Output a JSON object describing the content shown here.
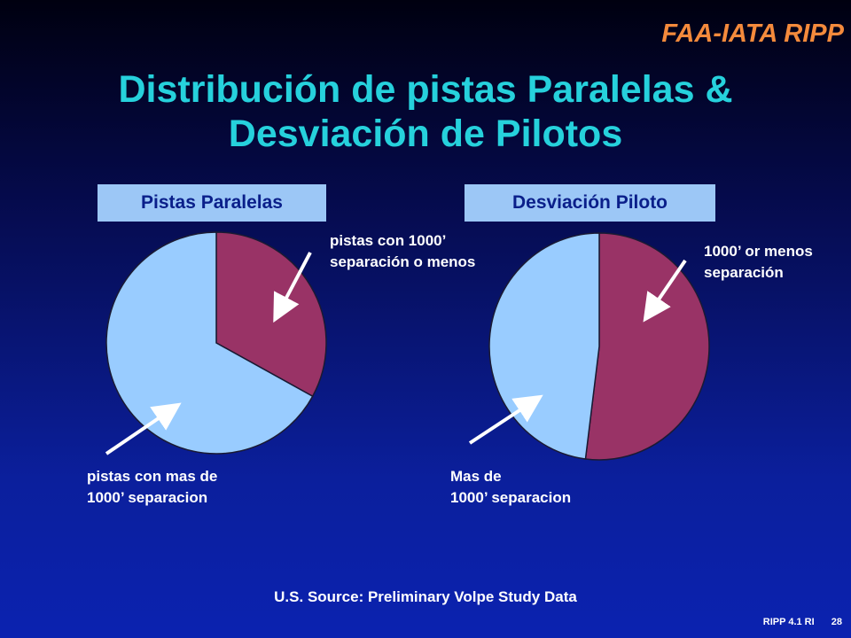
{
  "brand": "FAA-IATA RIPP",
  "title": [
    "Distribución de pistas Paralelas &",
    "Desviación de Pilotos"
  ],
  "colors": {
    "title": "#26d1dc",
    "brand": "#f48a3c",
    "slice_maroon": "#993366",
    "slice_lightblue": "#99ccff",
    "header_box": "#9cc7f6",
    "header_text": "#0a1f8a"
  },
  "chart_data": [
    {
      "type": "pie",
      "title": "Pistas Paralelas",
      "slices": [
        {
          "label": "pistas con 1000’ separación o menos",
          "value": 33,
          "color": "#993366"
        },
        {
          "label": "pistas con mas de 1000’ separacion",
          "value": 67,
          "color": "#99ccff"
        }
      ],
      "annotations": [
        [
          "pistas con 1000’",
          "separación o menos"
        ],
        [
          "pistas con mas de",
          "1000’ separacion"
        ]
      ]
    },
    {
      "type": "pie",
      "title": "Desviación Piloto",
      "slices": [
        {
          "label": "1000’ or menos separación",
          "value": 52,
          "color": "#993366"
        },
        {
          "label": "Mas de 1000’ separacion",
          "value": 48,
          "color": "#99ccff"
        }
      ],
      "annotations": [
        [
          "1000’ or menos",
          "separación"
        ],
        [
          "Mas de",
          "1000’ separacion"
        ]
      ]
    }
  ],
  "source": "U.S. Source: Preliminary Volpe Study Data",
  "footer": {
    "code": "RIPP 4.1 RI",
    "page": "28"
  }
}
